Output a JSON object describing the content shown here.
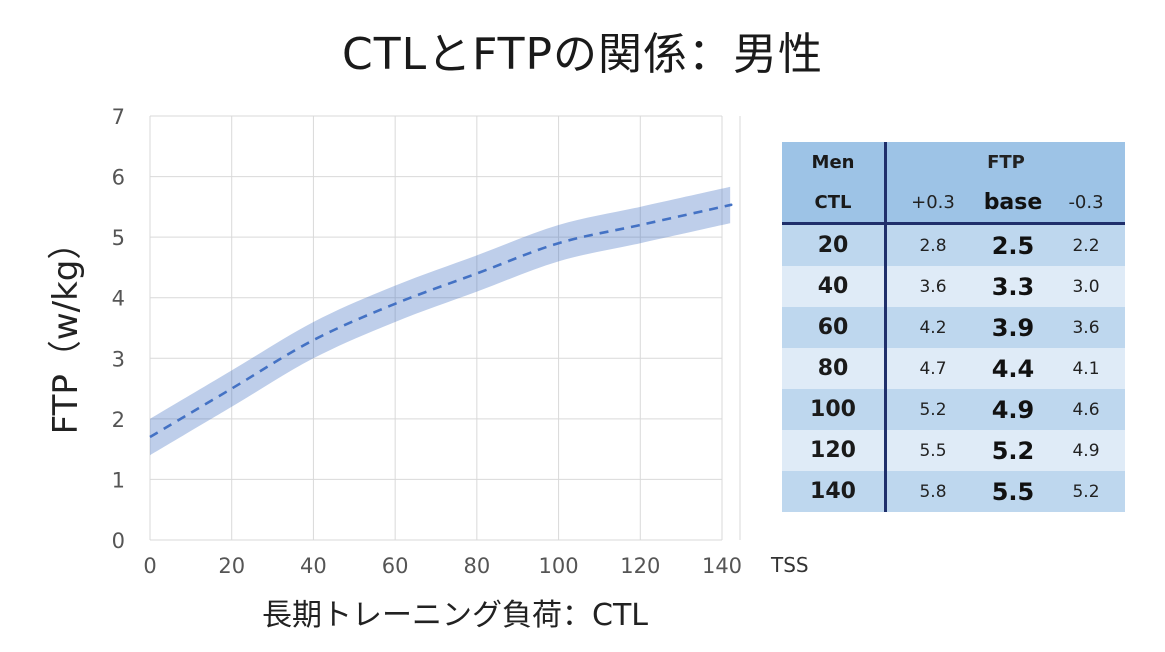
{
  "title": "CTLとFTPの関係：男性",
  "chart_data": {
    "type": "line",
    "xlabel": "長期トレーニング負荷：CTL",
    "x_unit": "TSS",
    "ylabel": "FTP（w/kg）",
    "xlim": [
      0,
      145
    ],
    "ylim": [
      0,
      7
    ],
    "xticks": [
      "0",
      "20",
      "40",
      "60",
      "80",
      "100",
      "120",
      "140"
    ],
    "yticks": [
      "0",
      "1",
      "2",
      "3",
      "4",
      "5",
      "6",
      "7"
    ],
    "grid": true,
    "series": [
      {
        "style": "dashed",
        "color": "#4472c4",
        "x": [
          0,
          20,
          40,
          60,
          80,
          100,
          120,
          140
        ],
        "y": [
          1.7,
          2.5,
          3.3,
          3.9,
          4.4,
          4.9,
          5.2,
          5.5
        ]
      }
    ],
    "band": {
      "color": "#4472c4",
      "x": [
        0,
        20,
        40,
        60,
        80,
        100,
        120,
        140
      ],
      "upper": [
        2.0,
        2.8,
        3.6,
        4.2,
        4.7,
        5.2,
        5.5,
        5.8
      ],
      "lower": [
        1.4,
        2.2,
        3.0,
        3.6,
        4.1,
        4.6,
        4.9,
        5.2
      ]
    }
  },
  "table": {
    "header": {
      "men": "Men",
      "ftp": "FTP",
      "ctl": "CTL",
      "plus": "+0.3",
      "base": "base",
      "minus": "-0.3"
    },
    "rows": [
      {
        "ctl": "20",
        "plus": "2.8",
        "base": "2.5",
        "minus": "2.2"
      },
      {
        "ctl": "40",
        "plus": "3.6",
        "base": "3.3",
        "minus": "3.0"
      },
      {
        "ctl": "60",
        "plus": "4.2",
        "base": "3.9",
        "minus": "3.6"
      },
      {
        "ctl": "80",
        "plus": "4.7",
        "base": "4.4",
        "minus": "4.1"
      },
      {
        "ctl": "100",
        "plus": "5.2",
        "base": "4.9",
        "minus": "4.6"
      },
      {
        "ctl": "120",
        "plus": "5.5",
        "base": "5.2",
        "minus": "4.9"
      },
      {
        "ctl": "140",
        "plus": "5.8",
        "base": "5.5",
        "minus": "5.2"
      }
    ]
  }
}
